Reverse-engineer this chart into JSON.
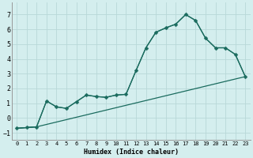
{
  "xlabel": "Humidex (Indice chaleur)",
  "bg_color": "#d4eeee",
  "grid_color": "#b8d8d8",
  "line_color": "#1a6b5e",
  "xlim": [
    -0.5,
    23.5
  ],
  "ylim": [
    -1.5,
    7.8
  ],
  "xticks": [
    0,
    1,
    2,
    3,
    4,
    5,
    6,
    7,
    8,
    9,
    10,
    11,
    12,
    13,
    14,
    15,
    16,
    17,
    18,
    19,
    20,
    21,
    22,
    23
  ],
  "yticks": [
    -1,
    0,
    1,
    2,
    3,
    4,
    5,
    6,
    7
  ],
  "line1_x": [
    0,
    1,
    2,
    3,
    4,
    5,
    6,
    7,
    8,
    9,
    10,
    11,
    12,
    13,
    14,
    15,
    16,
    17,
    18,
    19,
    20,
    21,
    22,
    23
  ],
  "line1_y": [
    -0.7,
    -0.65,
    -0.6,
    1.15,
    0.75,
    0.65,
    1.1,
    1.55,
    1.45,
    1.4,
    1.55,
    1.6,
    3.2,
    4.75,
    5.8,
    6.1,
    6.35,
    7.0,
    6.6,
    5.4,
    4.75,
    4.75,
    4.3,
    2.8
  ],
  "line2_x": [
    0,
    2,
    23
  ],
  "line2_y": [
    -0.7,
    -0.6,
    2.8
  ],
  "line3_x": [
    0,
    2,
    3,
    4,
    5,
    6,
    7,
    8,
    9,
    10,
    11,
    12,
    13,
    14,
    15,
    16,
    17,
    18,
    19,
    20,
    21,
    22,
    23
  ],
  "line3_y": [
    -0.7,
    -0.6,
    1.15,
    0.75,
    0.65,
    1.1,
    1.55,
    1.45,
    1.4,
    1.55,
    1.6,
    3.2,
    4.75,
    5.8,
    6.1,
    6.35,
    7.0,
    6.6,
    5.4,
    4.75,
    4.75,
    4.3,
    2.8
  ]
}
